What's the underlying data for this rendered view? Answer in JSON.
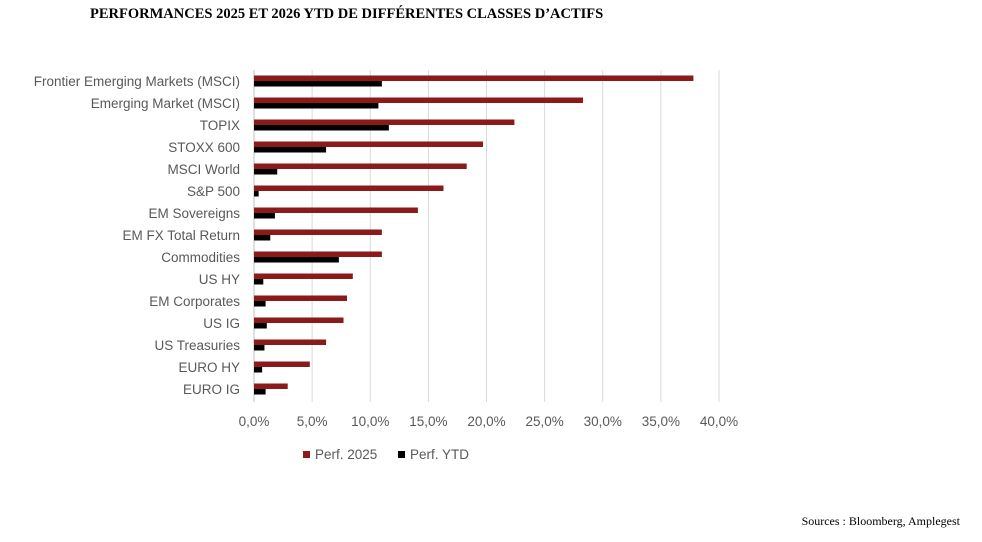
{
  "title": "PERFORMANCES 2025 ET 2026 YTD DE DIFFÉRENTES CLASSES D’ACTIFS",
  "source": "Sources : Bloomberg, Amplegest",
  "chart_data": {
    "type": "bar",
    "orientation": "horizontal",
    "categories": [
      "Frontier Emerging Markets (MSCI)",
      "Emerging Market (MSCI)",
      "TOPIX",
      "STOXX 600",
      "MSCI World",
      "S&P 500",
      "EM Sovereigns",
      "EM FX Total Return",
      "Commodities",
      "US HY",
      "EM Corporates",
      "US IG",
      "US Treasuries",
      "EURO HY",
      "EURO IG"
    ],
    "series": [
      {
        "name": "Perf. 2025",
        "color": "#8B1A1A",
        "values": [
          37.8,
          28.3,
          22.4,
          19.7,
          18.3,
          16.3,
          14.1,
          11.0,
          11.0,
          8.5,
          8.0,
          7.7,
          6.2,
          4.8,
          2.9
        ]
      },
      {
        "name": "Perf. YTD",
        "color": "#000000",
        "values": [
          11.0,
          10.7,
          11.6,
          6.2,
          2.0,
          0.4,
          1.8,
          1.4,
          7.3,
          0.8,
          1.0,
          1.1,
          0.9,
          0.7,
          1.0
        ]
      }
    ],
    "x_ticks": [
      "0,0%",
      "5,0%",
      "10,0%",
      "15,0%",
      "20,0%",
      "25,0%",
      "30,0%",
      "35,0%",
      "40,0%"
    ],
    "xlim": [
      0,
      40
    ],
    "grid": true,
    "legend_position": "bottom-left"
  }
}
